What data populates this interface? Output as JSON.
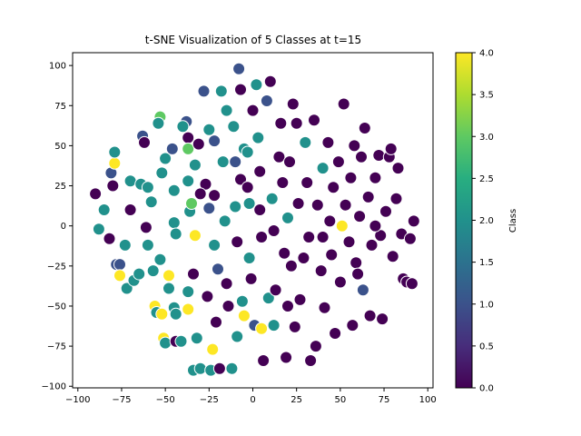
{
  "chart_data": {
    "type": "scatter",
    "title": "t-SNE Visualization of 5 Classes at t=15",
    "colorbar": {
      "label": "Class",
      "min": 0.0,
      "max": 4.0,
      "ticks": [
        "0.0",
        "0.5",
        "1.0",
        "1.5",
        "2.0",
        "2.5",
        "3.0",
        "3.5",
        "4.0"
      ],
      "colormap": "viridis"
    },
    "xlim": [
      -103,
      103
    ],
    "ylim": [
      -101,
      108
    ],
    "xticks": [
      -100,
      -75,
      -50,
      -25,
      0,
      25,
      50,
      75,
      100
    ],
    "yticks": [
      -100,
      -75,
      -50,
      -25,
      0,
      25,
      50,
      75,
      100
    ],
    "grid": false,
    "points": [
      {
        "x": -90,
        "y": 20,
        "c": 0
      },
      {
        "x": -85,
        "y": 10,
        "c": 2
      },
      {
        "x": -88,
        "y": -2,
        "c": 2
      },
      {
        "x": -82,
        "y": -8,
        "c": 0
      },
      {
        "x": -78,
        "y": -24,
        "c": 1
      },
      {
        "x": -80,
        "y": 25,
        "c": 0
      },
      {
        "x": -81,
        "y": 33,
        "c": 1
      },
      {
        "x": -79,
        "y": 39,
        "c": 4
      },
      {
        "x": -79,
        "y": 46,
        "c": 2
      },
      {
        "x": -76,
        "y": -24,
        "c": 1
      },
      {
        "x": -76,
        "y": -31,
        "c": 4
      },
      {
        "x": -72,
        "y": -39,
        "c": 2
      },
      {
        "x": -73,
        "y": -12,
        "c": 2
      },
      {
        "x": -70,
        "y": 10,
        "c": 0
      },
      {
        "x": -70,
        "y": 28,
        "c": 2
      },
      {
        "x": -68,
        "y": -34,
        "c": 2
      },
      {
        "x": -65,
        "y": -30,
        "c": 2
      },
      {
        "x": -64,
        "y": 26,
        "c": 2
      },
      {
        "x": -63,
        "y": 56,
        "c": 1
      },
      {
        "x": -62,
        "y": 52,
        "c": 0
      },
      {
        "x": -60,
        "y": 24,
        "c": 2
      },
      {
        "x": -61,
        "y": -1,
        "c": 0
      },
      {
        "x": -58,
        "y": 15,
        "c": 2
      },
      {
        "x": -60,
        "y": -12,
        "c": 2
      },
      {
        "x": -57,
        "y": -28,
        "c": 2
      },
      {
        "x": -56,
        "y": -50,
        "c": 4
      },
      {
        "x": -55,
        "y": -54,
        "c": 2
      },
      {
        "x": -53,
        "y": -21,
        "c": 2
      },
      {
        "x": -52,
        "y": -55,
        "c": 4
      },
      {
        "x": -51,
        "y": -70,
        "c": 4
      },
      {
        "x": -50,
        "y": -73,
        "c": 2
      },
      {
        "x": -53,
        "y": 68,
        "c": 3
      },
      {
        "x": -54,
        "y": 64,
        "c": 2
      },
      {
        "x": -52,
        "y": 33,
        "c": 2
      },
      {
        "x": -50,
        "y": 42,
        "c": 2
      },
      {
        "x": -48,
        "y": -31,
        "c": 4
      },
      {
        "x": -48,
        "y": -39,
        "c": 2
      },
      {
        "x": -46,
        "y": 48,
        "c": 1
      },
      {
        "x": -45,
        "y": 22,
        "c": 2
      },
      {
        "x": -45,
        "y": 2,
        "c": 2
      },
      {
        "x": -44,
        "y": -5,
        "c": 2
      },
      {
        "x": -44,
        "y": -72,
        "c": 0
      },
      {
        "x": -45,
        "y": -51,
        "c": 2
      },
      {
        "x": -44,
        "y": -55,
        "c": 2
      },
      {
        "x": -41,
        "y": -72,
        "c": 2
      },
      {
        "x": -38,
        "y": 65,
        "c": 1
      },
      {
        "x": -37,
        "y": 55,
        "c": 0
      },
      {
        "x": -37,
        "y": 48,
        "c": 3
      },
      {
        "x": -37,
        "y": 28,
        "c": 2
      },
      {
        "x": -36,
        "y": 9,
        "c": 2
      },
      {
        "x": -35,
        "y": 14,
        "c": 3
      },
      {
        "x": -37,
        "y": -41,
        "c": 2
      },
      {
        "x": -37,
        "y": -52,
        "c": 4
      },
      {
        "x": -34,
        "y": -90,
        "c": 2
      },
      {
        "x": -33,
        "y": 38,
        "c": 2
      },
      {
        "x": -33,
        "y": -6,
        "c": 4
      },
      {
        "x": -34,
        "y": -30,
        "c": 0
      },
      {
        "x": -31,
        "y": 51,
        "c": 0
      },
      {
        "x": -32,
        "y": -70,
        "c": 2
      },
      {
        "x": -30,
        "y": -89,
        "c": 2
      },
      {
        "x": -28,
        "y": 84,
        "c": 1
      },
      {
        "x": -27,
        "y": 26,
        "c": 0
      },
      {
        "x": -26,
        "y": -44,
        "c": 0
      },
      {
        "x": -25,
        "y": 60,
        "c": 2
      },
      {
        "x": -25,
        "y": 11,
        "c": 1
      },
      {
        "x": -24,
        "y": -90,
        "c": 2
      },
      {
        "x": -23,
        "y": -77,
        "c": 4
      },
      {
        "x": -22,
        "y": 53,
        "c": 1
      },
      {
        "x": -22,
        "y": 19,
        "c": 0
      },
      {
        "x": -22,
        "y": -12,
        "c": 2
      },
      {
        "x": -21,
        "y": -60,
        "c": 0
      },
      {
        "x": -20,
        "y": -27,
        "c": 1
      },
      {
        "x": -19,
        "y": -89,
        "c": 0
      },
      {
        "x": -18,
        "y": 84,
        "c": 2
      },
      {
        "x": -17,
        "y": 40,
        "c": 2
      },
      {
        "x": -16,
        "y": 3,
        "c": 2
      },
      {
        "x": -15,
        "y": -36,
        "c": 0
      },
      {
        "x": -14,
        "y": -50,
        "c": 0
      },
      {
        "x": -12,
        "y": -89,
        "c": 2
      },
      {
        "x": -11,
        "y": 62,
        "c": 2
      },
      {
        "x": -10,
        "y": 40,
        "c": 1
      },
      {
        "x": -10,
        "y": 12,
        "c": 2
      },
      {
        "x": -9,
        "y": -10,
        "c": 0
      },
      {
        "x": -9,
        "y": -69,
        "c": 2
      },
      {
        "x": -8,
        "y": 98,
        "c": 1
      },
      {
        "x": -7,
        "y": 85,
        "c": 0
      },
      {
        "x": -7,
        "y": 29,
        "c": 0
      },
      {
        "x": -6,
        "y": -47,
        "c": 2
      },
      {
        "x": -5,
        "y": -56,
        "c": 4
      },
      {
        "x": -5,
        "y": 48,
        "c": 2
      },
      {
        "x": -3,
        "y": 46,
        "c": 2
      },
      {
        "x": -3,
        "y": 24,
        "c": 0
      },
      {
        "x": -2,
        "y": 14,
        "c": 2
      },
      {
        "x": -2,
        "y": -20,
        "c": 2
      },
      {
        "x": -1,
        "y": -33,
        "c": 0
      },
      {
        "x": 1,
        "y": -62,
        "c": 1
      },
      {
        "x": 2,
        "y": 88,
        "c": 2
      },
      {
        "x": 3,
        "y": 55,
        "c": 2
      },
      {
        "x": 4,
        "y": 34,
        "c": 0
      },
      {
        "x": 4,
        "y": 10,
        "c": 0
      },
      {
        "x": 5,
        "y": -7,
        "c": 0
      },
      {
        "x": 5,
        "y": -64,
        "c": 4
      },
      {
        "x": 6,
        "y": -84,
        "c": 0
      },
      {
        "x": 8,
        "y": 78,
        "c": 1
      },
      {
        "x": 9,
        "y": -45,
        "c": 2
      },
      {
        "x": 10,
        "y": 90,
        "c": 0
      },
      {
        "x": 11,
        "y": 17,
        "c": 2
      },
      {
        "x": 12,
        "y": -3,
        "c": 0
      },
      {
        "x": 12,
        "y": -62,
        "c": 2
      },
      {
        "x": 13,
        "y": -40,
        "c": 0
      },
      {
        "x": 15,
        "y": 43,
        "c": 0
      },
      {
        "x": 16,
        "y": 64,
        "c": 0
      },
      {
        "x": 17,
        "y": 27,
        "c": 0
      },
      {
        "x": 18,
        "y": -17,
        "c": 0
      },
      {
        "x": 19,
        "y": -82,
        "c": 0
      },
      {
        "x": 20,
        "y": 5,
        "c": 2
      },
      {
        "x": 21,
        "y": 40,
        "c": 0
      },
      {
        "x": 22,
        "y": -25,
        "c": 0
      },
      {
        "x": 23,
        "y": 76,
        "c": 0
      },
      {
        "x": 24,
        "y": -63,
        "c": 0
      },
      {
        "x": 25,
        "y": 64,
        "c": 0
      },
      {
        "x": 26,
        "y": 14,
        "c": 0
      },
      {
        "x": 27,
        "y": -46,
        "c": 0
      },
      {
        "x": 29,
        "y": -20,
        "c": 0
      },
      {
        "x": 30,
        "y": 52,
        "c": 2
      },
      {
        "x": 31,
        "y": 27,
        "c": 0
      },
      {
        "x": 32,
        "y": -7,
        "c": 0
      },
      {
        "x": 33,
        "y": -84,
        "c": 0
      },
      {
        "x": 35,
        "y": 66,
        "c": 0
      },
      {
        "x": 36,
        "y": -75,
        "c": 0
      },
      {
        "x": 37,
        "y": 13,
        "c": 0
      },
      {
        "x": 39,
        "y": -28,
        "c": 0
      },
      {
        "x": 40,
        "y": 36,
        "c": 2
      },
      {
        "x": 41,
        "y": -51,
        "c": 0
      },
      {
        "x": 43,
        "y": 52,
        "c": 0
      },
      {
        "x": 44,
        "y": 3,
        "c": 0
      },
      {
        "x": 45,
        "y": -18,
        "c": 0
      },
      {
        "x": 46,
        "y": 24,
        "c": 0
      },
      {
        "x": 47,
        "y": -67,
        "c": 0
      },
      {
        "x": 49,
        "y": 40,
        "c": 0
      },
      {
        "x": 50,
        "y": -35,
        "c": 0
      },
      {
        "x": 51,
        "y": 0,
        "c": 4
      },
      {
        "x": 52,
        "y": 76,
        "c": 0
      },
      {
        "x": 53,
        "y": 13,
        "c": 0
      },
      {
        "x": 55,
        "y": -10,
        "c": 0
      },
      {
        "x": 56,
        "y": 30,
        "c": 0
      },
      {
        "x": 57,
        "y": -62,
        "c": 0
      },
      {
        "x": 58,
        "y": 50,
        "c": 0
      },
      {
        "x": 59,
        "y": -23,
        "c": 0
      },
      {
        "x": 61,
        "y": 6,
        "c": 0
      },
      {
        "x": 62,
        "y": 43,
        "c": 0
      },
      {
        "x": 63,
        "y": -40,
        "c": 1
      },
      {
        "x": 64,
        "y": 61,
        "c": 0
      },
      {
        "x": 66,
        "y": 18,
        "c": 0
      },
      {
        "x": 67,
        "y": -56,
        "c": 0
      },
      {
        "x": 68,
        "y": -12,
        "c": 0
      },
      {
        "x": 70,
        "y": 30,
        "c": 0
      },
      {
        "x": 72,
        "y": 44,
        "c": 0
      },
      {
        "x": 73,
        "y": -6,
        "c": 0
      },
      {
        "x": 74,
        "y": -58,
        "c": 0
      },
      {
        "x": 76,
        "y": 9,
        "c": 0
      },
      {
        "x": 78,
        "y": 43,
        "c": 0
      },
      {
        "x": 79,
        "y": 48,
        "c": 0
      },
      {
        "x": 80,
        "y": -19,
        "c": 0
      },
      {
        "x": 82,
        "y": 17,
        "c": 0
      },
      {
        "x": 83,
        "y": 36,
        "c": 0
      },
      {
        "x": 85,
        "y": -5,
        "c": 0
      },
      {
        "x": 86,
        "y": -33,
        "c": 0
      },
      {
        "x": 88,
        "y": -35,
        "c": 0
      },
      {
        "x": 90,
        "y": -8,
        "c": 0
      },
      {
        "x": 92,
        "y": 3,
        "c": 0
      },
      {
        "x": 91,
        "y": -36,
        "c": 0
      },
      {
        "x": -40,
        "y": 62,
        "c": 2
      },
      {
        "x": -30,
        "y": 20,
        "c": 0
      },
      {
        "x": -15,
        "y": 72,
        "c": 2
      },
      {
        "x": 0,
        "y": 72,
        "c": 0
      },
      {
        "x": 20,
        "y": -50,
        "c": 0
      },
      {
        "x": 40,
        "y": -7,
        "c": 0
      },
      {
        "x": 60,
        "y": -30,
        "c": 0
      },
      {
        "x": 70,
        "y": 0,
        "c": 0
      }
    ]
  }
}
